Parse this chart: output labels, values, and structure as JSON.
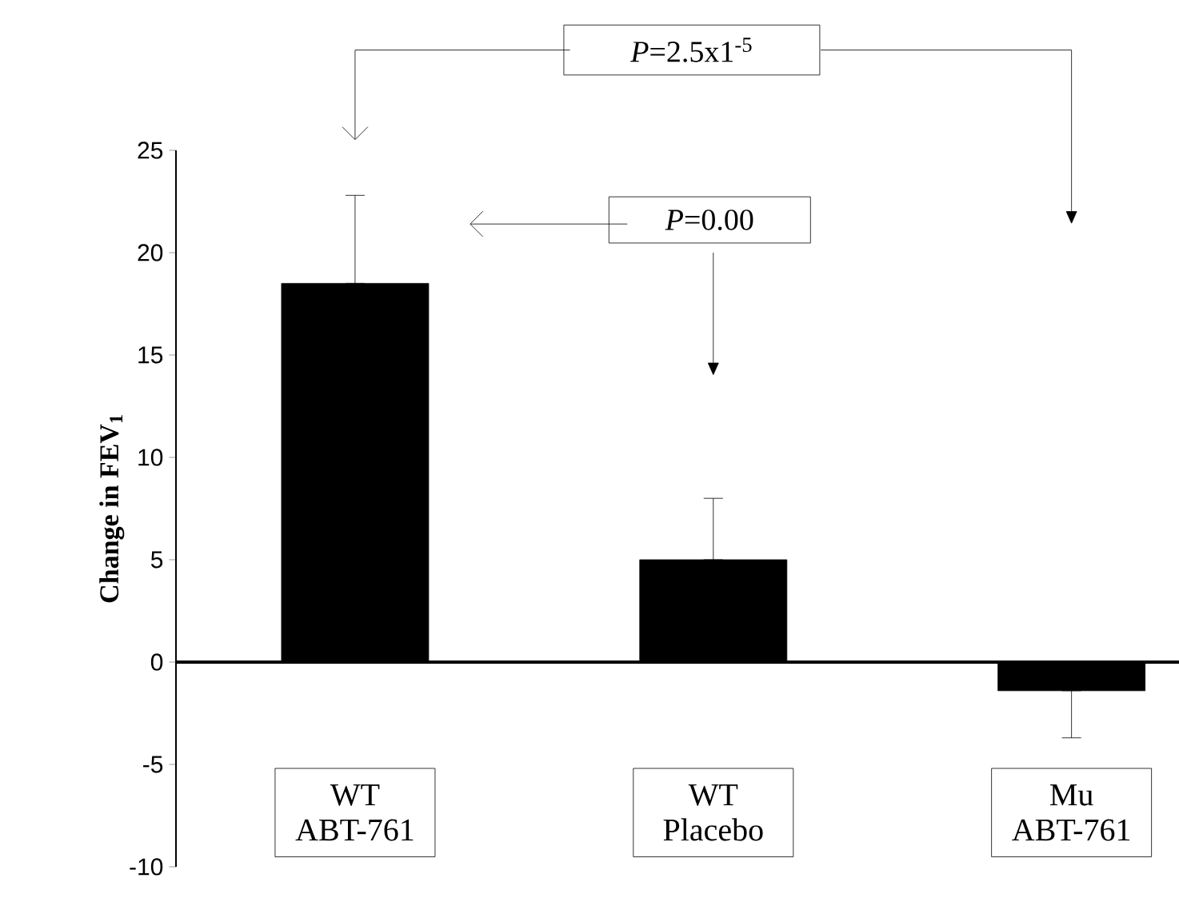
{
  "chart_data": {
    "type": "bar",
    "ylabel": "Change in FEV$_{1}$",
    "categories": [
      "WT ABT-761",
      "WT Placebo",
      "Mu ABT-761"
    ],
    "values": [
      18.5,
      5,
      -1.4
    ],
    "errors": [
      [
        18.5,
        22.8
      ],
      [
        5,
        8
      ],
      [
        -3.7,
        -1.4
      ]
    ],
    "color": "#000000",
    "ylim": [
      -10,
      25
    ],
    "yticks": [
      -10,
      -5,
      0,
      5,
      10,
      15,
      20,
      25
    ],
    "annotations": [
      "*P*=2.5x1$^{-5}$",
      "*P*=0.00"
    ]
  }
}
